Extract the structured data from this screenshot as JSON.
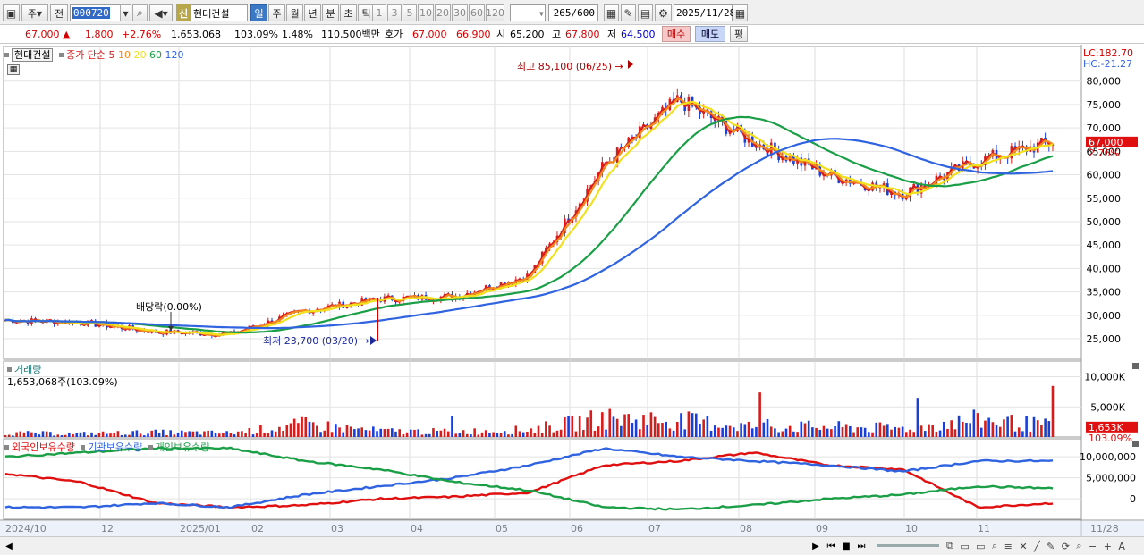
{
  "toolbar": {
    "period_label": "주",
    "prev_label": "전",
    "code_value": "000720",
    "new_badge": "신",
    "stock_name": "현대건설",
    "tabs": [
      "일",
      "주",
      "월",
      "년",
      "분",
      "초",
      "틱"
    ],
    "active_tab": "일",
    "intervals": [
      "1",
      "3",
      "5",
      "10",
      "20",
      "30",
      "60",
      "120"
    ],
    "count_value": "265",
    "count_total": "/600",
    "date_value": "2025/11/28"
  },
  "quote": {
    "price": "67,000",
    "change": "1,800",
    "change_pct": "+2.76%",
    "volume": "1,653,068",
    "volume_pct": "103.09%",
    "turnover": "1.48%",
    "amount": "110,500백만",
    "ask_label": "호가",
    "ask": "67,000",
    "bid": "66,900",
    "open_label": "시",
    "open": "65,200",
    "high_label": "고",
    "high": "67,800",
    "low_label": "저",
    "low": "64,500",
    "buy_label": "매수",
    "sell_label": "매도",
    "eval_label": "평"
  },
  "price_panel": {
    "stock_label": "현대건설",
    "legend_label": "종가 단순",
    "ma_periods": [
      "5",
      "10",
      "20",
      "60",
      "120"
    ],
    "ma_colors": [
      "#d81b1b",
      "#f08a1c",
      "#f0e11c",
      "#1a9e46",
      "#2f63e0"
    ],
    "lc": "LC:182.70",
    "hc": "HC:-21.27",
    "yticks": [
      "80,000",
      "75,000",
      "70,000",
      "65,000",
      "60,000",
      "55,000",
      "50,000",
      "45,000",
      "40,000",
      "35,000",
      "30,000",
      "25,000"
    ],
    "ylim": [
      21000,
      87000
    ],
    "last_price_tag": "67,000",
    "last_pct_tag": "2.76%",
    "annotation_high": "최고 85,100 (06/25)",
    "annotation_low": "최저 23,700 (03/20)",
    "annotation_div": "배당락(0.00%)"
  },
  "volume_panel": {
    "title": "거래량",
    "subtitle": "1,653,068주(103.09%)",
    "yticks": [
      "10,000K",
      "5,000K"
    ],
    "tag_value": "1,653K",
    "tag_pct": "103.09%"
  },
  "holding_panel": {
    "foreign_label": "외국인보유수량",
    "inst_label": "기관보유수량",
    "indiv_label": "개인보유수량",
    "yticks": [
      "10,000,000",
      "5,000,000",
      "0"
    ],
    "colors": [
      "#e01010",
      "#2f63e0",
      "#1a9e46"
    ]
  },
  "xaxis": {
    "labels": [
      "2024/10",
      "12",
      "2025/01",
      "02",
      "03",
      "04",
      "05",
      "06",
      "07",
      "08",
      "09",
      "10",
      "11"
    ],
    "right_label": "11/28"
  },
  "chart_data": {
    "type": "line",
    "x": [
      "2024/10",
      "2024/11",
      "2024/12",
      "2025/01",
      "2025/02",
      "2025/03",
      "2025/04",
      "2025/05",
      "2025/06",
      "2025/07",
      "2025/08",
      "2025/09",
      "2025/10",
      "2025/11",
      "2025/11/28"
    ],
    "series": [
      {
        "name": "현대건설",
        "values": [
          29000,
          28500,
          26500,
          26000,
          31000,
          33500,
          34000,
          38500,
          62000,
          76000,
          67000,
          60000,
          56000,
          63000,
          67000
        ]
      },
      {
        "name": "120",
        "values": [
          31500,
          30500,
          29500,
          28500,
          28500,
          29500,
          30500,
          32500,
          37000,
          46000,
          53000,
          58500,
          60500,
          62500,
          63000
        ]
      }
    ],
    "volume_k": [
      600,
      500,
      700,
      600,
      1900,
      900,
      800,
      1100,
      2800,
      2500,
      1600,
      1500,
      1300,
      2600,
      1653
    ],
    "ylim": [
      21000,
      87000
    ]
  }
}
